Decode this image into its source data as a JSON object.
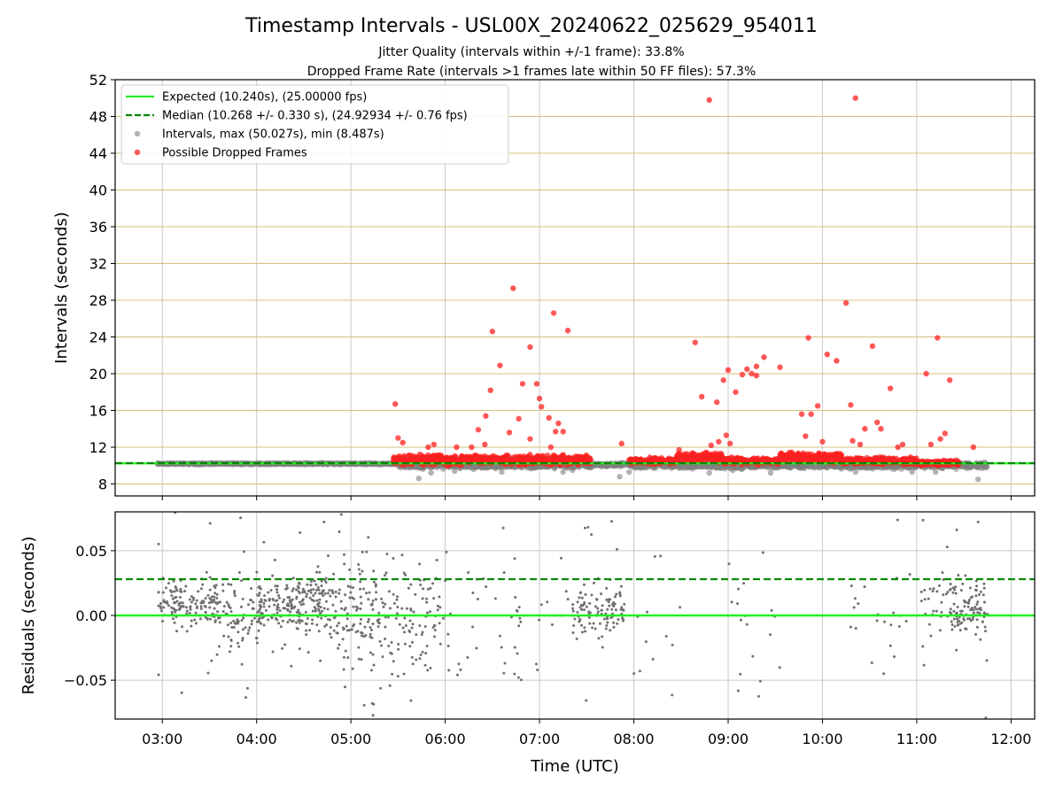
{
  "chart_data": [
    {
      "type": "scatter",
      "title": "Timestamp Intervals - USL00X_20240622_025629_954011",
      "subtitle_1": "Jitter Quality (intervals within +/-1 frame): 33.8%",
      "subtitle_2": "Dropped Frame Rate (intervals >1 frames late within 50 FF files): 57.3%",
      "xlabel": "",
      "ylabel": "Intervals (seconds)",
      "xlim": [
        2.5,
        12.25
      ],
      "ylim": [
        6.7,
        52
      ],
      "yticks": [
        8,
        12,
        16,
        20,
        24,
        28,
        32,
        36,
        40,
        44,
        48,
        52
      ],
      "legend_position": "top-left",
      "legend": [
        {
          "label": "Expected (10.240s), (25.00000 fps)",
          "color": "#22ee22",
          "style": "solid-line"
        },
        {
          "label": "Median (10.268 +/- 0.330 s), (24.92934 +/- 0.76 fps)",
          "color": "#008800",
          "style": "dashed-line"
        },
        {
          "label": "Intervals, max (50.027s), min (8.487s)",
          "color": "#808080",
          "style": "marker"
        },
        {
          "label": "Possible Dropped Frames",
          "color": "#ff2020",
          "style": "marker"
        }
      ],
      "expected_interval": 10.24,
      "median_interval": 10.268,
      "baseline_intervals": {
        "color": "#808080",
        "segments": [
          {
            "x_range": [
              2.95,
              5.55
            ],
            "y_center": 10.2,
            "spread": 0.12
          },
          {
            "x_range": [
              5.5,
              7.55
            ],
            "y_center": 10.0,
            "spread": 0.4
          },
          {
            "x_range": [
              7.5,
              8.05
            ],
            "y_center": 10.1,
            "spread": 0.3
          },
          {
            "x_range": [
              8.0,
              11.75
            ],
            "y_center": 10.0,
            "spread": 0.45
          }
        ],
        "points": [
          {
            "x": 5.72,
            "y": 8.6
          },
          {
            "x": 5.85,
            "y": 9.2
          },
          {
            "x": 6.1,
            "y": 9.4
          },
          {
            "x": 6.6,
            "y": 9.3
          },
          {
            "x": 7.25,
            "y": 9.3
          },
          {
            "x": 7.35,
            "y": 9.5
          },
          {
            "x": 7.55,
            "y": 9.8
          },
          {
            "x": 7.85,
            "y": 8.8
          },
          {
            "x": 7.95,
            "y": 9.3
          },
          {
            "x": 8.8,
            "y": 9.2
          },
          {
            "x": 9.45,
            "y": 9.2
          },
          {
            "x": 10.35,
            "y": 9.3
          },
          {
            "x": 10.95,
            "y": 9.3
          },
          {
            "x": 11.2,
            "y": 9.3
          },
          {
            "x": 11.65,
            "y": 8.5
          },
          {
            "x": 10.05,
            "y": 9.8
          },
          {
            "x": 9.05,
            "y": 9.5
          },
          {
            "x": 6.3,
            "y": 9.6
          },
          {
            "x": 11.55,
            "y": 10.3
          },
          {
            "x": 11.7,
            "y": 10.2
          }
        ]
      },
      "dropped_frames": {
        "color": "#ff2020",
        "band_segments": [
          {
            "x_range": [
              5.45,
              7.55
            ],
            "y_center": 10.6,
            "spread": 0.7
          },
          {
            "x_range": [
              7.95,
              8.45
            ],
            "y_center": 10.5,
            "spread": 0.45
          },
          {
            "x_range": [
              8.45,
              8.95
            ],
            "y_center": 10.9,
            "spread": 0.7
          },
          {
            "x_range": [
              8.95,
              9.55
            ],
            "y_center": 10.5,
            "spread": 0.5
          },
          {
            "x_range": [
              9.55,
              10.2
            ],
            "y_center": 10.9,
            "spread": 0.7
          },
          {
            "x_range": [
              10.2,
              11.0
            ],
            "y_center": 10.5,
            "spread": 0.5
          },
          {
            "x_range": [
              11.0,
              11.45
            ],
            "y_center": 10.3,
            "spread": 0.35
          }
        ],
        "outliers": [
          {
            "x": 5.47,
            "y": 16.7
          },
          {
            "x": 5.5,
            "y": 13.0
          },
          {
            "x": 5.55,
            "y": 12.5
          },
          {
            "x": 5.82,
            "y": 12.0
          },
          {
            "x": 5.88,
            "y": 12.3
          },
          {
            "x": 6.12,
            "y": 12.0
          },
          {
            "x": 6.28,
            "y": 12.0
          },
          {
            "x": 6.35,
            "y": 13.9
          },
          {
            "x": 6.42,
            "y": 12.3
          },
          {
            "x": 6.43,
            "y": 15.4
          },
          {
            "x": 6.48,
            "y": 18.2
          },
          {
            "x": 6.5,
            "y": 24.6
          },
          {
            "x": 6.58,
            "y": 20.9
          },
          {
            "x": 6.68,
            "y": 13.6
          },
          {
            "x": 6.72,
            "y": 29.3
          },
          {
            "x": 6.78,
            "y": 15.1
          },
          {
            "x": 6.82,
            "y": 18.9
          },
          {
            "x": 6.9,
            "y": 22.9
          },
          {
            "x": 6.9,
            "y": 12.9
          },
          {
            "x": 6.97,
            "y": 18.9
          },
          {
            "x": 7.0,
            "y": 17.3
          },
          {
            "x": 7.02,
            "y": 16.4
          },
          {
            "x": 7.1,
            "y": 15.2
          },
          {
            "x": 7.12,
            "y": 12.0
          },
          {
            "x": 7.15,
            "y": 26.6
          },
          {
            "x": 7.17,
            "y": 13.7
          },
          {
            "x": 7.2,
            "y": 14.6
          },
          {
            "x": 7.25,
            "y": 13.7
          },
          {
            "x": 7.3,
            "y": 24.7
          },
          {
            "x": 7.87,
            "y": 12.4
          },
          {
            "x": 8.48,
            "y": 11.7
          },
          {
            "x": 8.65,
            "y": 23.4
          },
          {
            "x": 8.72,
            "y": 17.5
          },
          {
            "x": 8.8,
            "y": 49.8
          },
          {
            "x": 8.82,
            "y": 12.2
          },
          {
            "x": 8.88,
            "y": 16.9
          },
          {
            "x": 8.9,
            "y": 12.6
          },
          {
            "x": 8.95,
            "y": 19.3
          },
          {
            "x": 8.98,
            "y": 13.3
          },
          {
            "x": 9.0,
            "y": 20.4
          },
          {
            "x": 9.02,
            "y": 12.4
          },
          {
            "x": 9.08,
            "y": 18.0
          },
          {
            "x": 9.15,
            "y": 19.9
          },
          {
            "x": 9.2,
            "y": 20.5
          },
          {
            "x": 9.25,
            "y": 20.0
          },
          {
            "x": 9.3,
            "y": 20.8
          },
          {
            "x": 9.3,
            "y": 19.8
          },
          {
            "x": 9.38,
            "y": 21.8
          },
          {
            "x": 9.55,
            "y": 20.7
          },
          {
            "x": 9.78,
            "y": 15.6
          },
          {
            "x": 9.82,
            "y": 13.2
          },
          {
            "x": 9.85,
            "y": 23.9
          },
          {
            "x": 9.88,
            "y": 15.6
          },
          {
            "x": 9.95,
            "y": 16.5
          },
          {
            "x": 10.0,
            "y": 12.6
          },
          {
            "x": 10.05,
            "y": 22.1
          },
          {
            "x": 10.15,
            "y": 21.4
          },
          {
            "x": 10.25,
            "y": 27.7
          },
          {
            "x": 10.3,
            "y": 16.6
          },
          {
            "x": 10.32,
            "y": 12.7
          },
          {
            "x": 10.35,
            "y": 50.0
          },
          {
            "x": 10.4,
            "y": 12.3
          },
          {
            "x": 10.45,
            "y": 14.0
          },
          {
            "x": 10.53,
            "y": 23.0
          },
          {
            "x": 10.58,
            "y": 14.7
          },
          {
            "x": 10.62,
            "y": 14.0
          },
          {
            "x": 10.72,
            "y": 18.4
          },
          {
            "x": 10.8,
            "y": 12.0
          },
          {
            "x": 10.85,
            "y": 12.3
          },
          {
            "x": 11.1,
            "y": 20.0
          },
          {
            "x": 11.15,
            "y": 12.3
          },
          {
            "x": 11.22,
            "y": 23.9
          },
          {
            "x": 11.25,
            "y": 12.9
          },
          {
            "x": 11.3,
            "y": 13.5
          },
          {
            "x": 11.35,
            "y": 19.3
          },
          {
            "x": 11.6,
            "y": 12.0
          }
        ]
      },
      "grid": {
        "vertical": true,
        "horizontal": true,
        "horizontal_color": "#d4c080"
      }
    },
    {
      "type": "scatter",
      "title": "",
      "xlabel": "Time (UTC)",
      "ylabel": "Residuals (seconds)",
      "xlim": [
        2.5,
        12.25
      ],
      "ylim": [
        -0.08,
        0.08
      ],
      "yticks": [
        -0.05,
        0.0,
        0.05
      ],
      "ytick_labels": [
        "−0.05",
        "0.00",
        "0.05"
      ],
      "xticks": [
        3,
        4,
        5,
        6,
        7,
        8,
        9,
        10,
        11,
        12
      ],
      "xtick_labels": [
        "03:00",
        "04:00",
        "05:00",
        "06:00",
        "07:00",
        "08:00",
        "09:00",
        "10:00",
        "11:00",
        "12:00"
      ],
      "expected_line": 0.0,
      "median_line": 0.028,
      "residual_points": {
        "color": "#707070",
        "density_clusters": [
          {
            "x_range": [
              2.95,
              3.6
            ],
            "y_center": 0.008,
            "spread": 0.02,
            "count": 150
          },
          {
            "x_range": [
              3.6,
              4.05
            ],
            "y_center": 0.0,
            "spread": 0.035,
            "count": 90
          },
          {
            "x_range": [
              4.0,
              4.75
            ],
            "y_center": 0.008,
            "spread": 0.025,
            "count": 210
          },
          {
            "x_range": [
              4.75,
              5.3
            ],
            "y_center": 0.0,
            "spread": 0.045,
            "count": 130
          },
          {
            "x_range": [
              5.3,
              5.95
            ],
            "y_center": -0.005,
            "spread": 0.05,
            "count": 110
          },
          {
            "x_range": [
              5.95,
              6.8
            ],
            "y_center": -0.01,
            "spread": 0.055,
            "count": 40
          },
          {
            "x_range": [
              6.8,
              7.45
            ],
            "y_center": 0.0,
            "spread": 0.06,
            "count": 15
          },
          {
            "x_range": [
              7.35,
              7.9
            ],
            "y_center": 0.005,
            "spread": 0.022,
            "count": 110
          },
          {
            "x_range": [
              8.0,
              8.5
            ],
            "y_center": -0.02,
            "spread": 0.05,
            "count": 12
          },
          {
            "x_range": [
              9.0,
              9.55
            ],
            "y_center": 0.0,
            "spread": 0.05,
            "count": 18
          },
          {
            "x_range": [
              10.3,
              10.95
            ],
            "y_center": 0.0,
            "spread": 0.05,
            "count": 22
          },
          {
            "x_range": [
              11.0,
              11.35
            ],
            "y_center": 0.005,
            "spread": 0.045,
            "count": 30
          },
          {
            "x_range": [
              11.35,
              11.75
            ],
            "y_center": 0.005,
            "spread": 0.022,
            "count": 110
          }
        ]
      },
      "grid": {
        "vertical": true,
        "horizontal": true
      }
    }
  ]
}
